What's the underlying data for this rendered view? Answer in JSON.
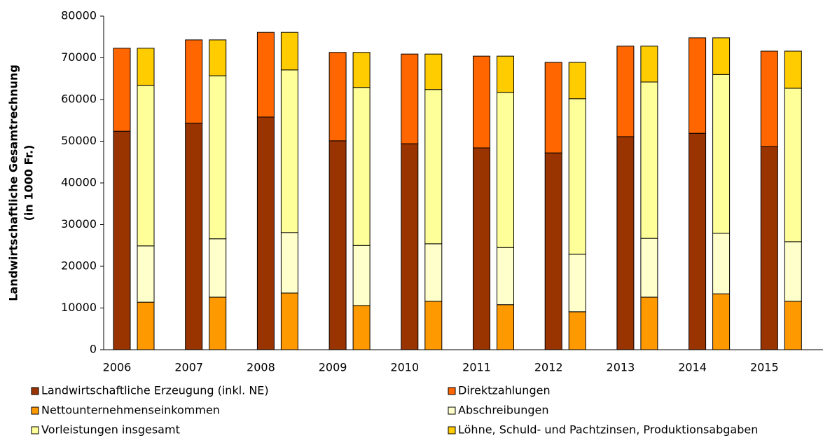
{
  "chart_data": {
    "type": "grouped_stacked_bar",
    "y_label": [
      "Landwirtschaftliche Gesamtrechnung",
      "(in 1000 Fr.)"
    ],
    "categories": [
      "2006",
      "2007",
      "2008",
      "2009",
      "2010",
      "2011",
      "2012",
      "2013",
      "2014",
      "2015"
    ],
    "series": [
      {
        "name": "Landwirtschaftliche Erzeugung (inkl. NE)",
        "color": "#993300",
        "stack": 0,
        "values": [
          52400,
          54300,
          55800,
          50100,
          49400,
          48400,
          47200,
          51100,
          51900,
          48700
        ]
      },
      {
        "name": "Direktzahlungen",
        "color": "#ff6600",
        "stack": 0,
        "values": [
          19900,
          20000,
          20300,
          21200,
          21500,
          22000,
          21700,
          21700,
          22900,
          22900
        ]
      },
      {
        "name": "Nettounternehmenseinkommen",
        "color": "#ff9900",
        "stack": 1,
        "values": [
          11400,
          12600,
          13600,
          10600,
          11600,
          10800,
          9100,
          12600,
          13400,
          11600
        ]
      },
      {
        "name": "Abschreibungen",
        "color": "#ffffcc",
        "stack": 1,
        "values": [
          13500,
          14000,
          14500,
          14400,
          13800,
          13700,
          13800,
          14100,
          14500,
          14300
        ]
      },
      {
        "name": "Vorleistungen insgesamt",
        "color": "#ffff99",
        "stack": 1,
        "values": [
          38500,
          39100,
          39000,
          37900,
          37000,
          37200,
          37300,
          37500,
          38100,
          36800
        ]
      },
      {
        "name": "Löhne, Schuld- und Pachtzinsen, Produktionsabgaben",
        "color": "#ffcc00",
        "stack": 1,
        "values": [
          8900,
          8600,
          9000,
          8400,
          8500,
          8700,
          8700,
          8600,
          8800,
          8900
        ]
      }
    ],
    "ylim": [
      0,
      80000
    ],
    "yticks": [
      0,
      10000,
      20000,
      30000,
      40000,
      50000,
      60000,
      70000,
      80000
    ],
    "grid": false
  }
}
